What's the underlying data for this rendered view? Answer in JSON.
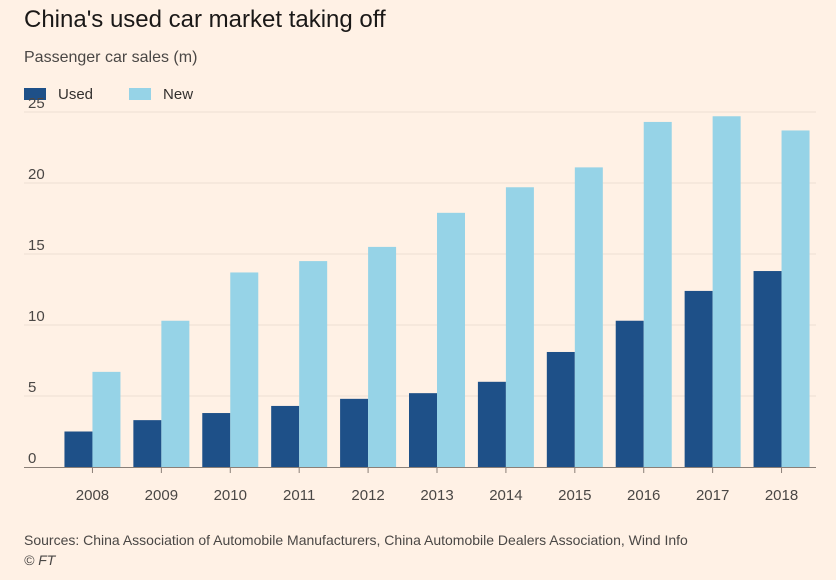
{
  "colors": {
    "background": "#fff1e5",
    "used": "#1e5088",
    "new": "#96d3e7",
    "grid": "#eddfd3",
    "axis": "#8a7f77"
  },
  "chart_data": {
    "type": "bar",
    "title": "China's used car market taking off",
    "subtitle": "Passenger car sales (m)",
    "categories": [
      "2008",
      "2009",
      "2010",
      "2011",
      "2012",
      "2013",
      "2014",
      "2015",
      "2016",
      "2017",
      "2018"
    ],
    "series": [
      {
        "name": "Used",
        "color": "#1e5088",
        "values": [
          2.5,
          3.3,
          3.8,
          4.3,
          4.8,
          5.2,
          6.0,
          8.1,
          10.3,
          12.4,
          13.8
        ]
      },
      {
        "name": "New",
        "color": "#96d3e7",
        "values": [
          6.7,
          10.3,
          13.7,
          14.5,
          15.5,
          17.9,
          19.7,
          21.1,
          24.3,
          24.7,
          23.7
        ]
      }
    ],
    "yticks": [
      "0",
      "5",
      "10",
      "15",
      "20",
      "25"
    ],
    "ylim": [
      0,
      25
    ],
    "grid": true,
    "legend_position": "top-left",
    "source": "Sources: China Association of Automobile Manufacturers, China Automobile Dealers Association, Wind Info",
    "credit": "© FT"
  }
}
